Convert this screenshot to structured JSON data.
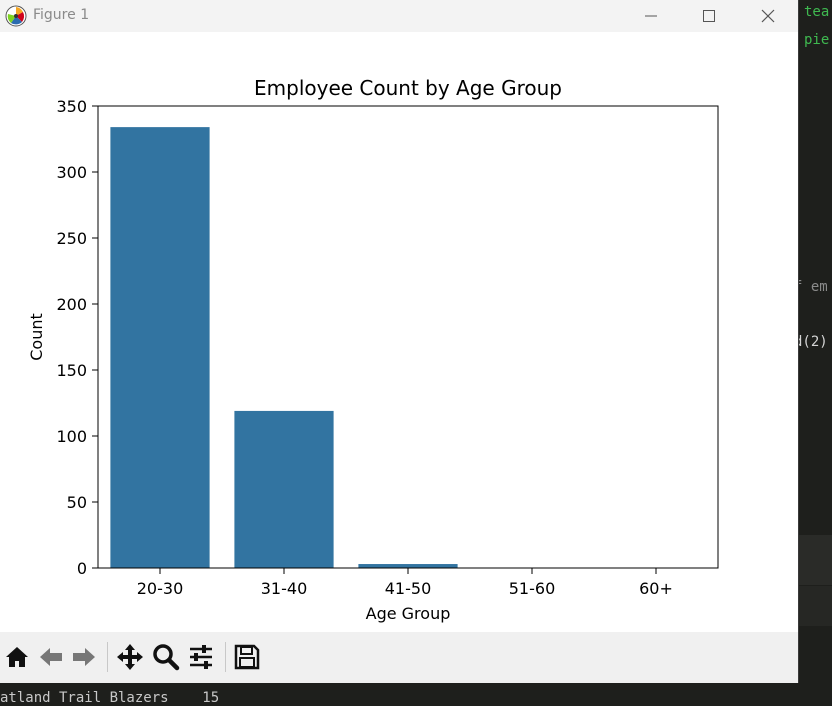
{
  "window": {
    "title": "Figure 1"
  },
  "editor": {
    "lines": [
      "tea",
      "pie",
      "f em",
      "d(2)",
      "atland Trail Blazers    15"
    ]
  },
  "toolbar": {
    "tools": [
      "home-icon",
      "back-arrow-icon",
      "forward-arrow-icon",
      "pan-move-icon",
      "zoom-magnifier-icon",
      "configure-subplots-icon",
      "save-disk-icon"
    ]
  },
  "colors": {
    "bar": "#3274a1",
    "toolbar_bg": "#f0f0f0",
    "titlebar_bg": "#f3f3f3"
  },
  "chart_data": {
    "type": "bar",
    "title": "Employee Count by Age Group",
    "xlabel": "Age Group",
    "ylabel": "Count",
    "categories": [
      "20-30",
      "31-40",
      "41-50",
      "51-60",
      "60+"
    ],
    "values": [
      334,
      119,
      3,
      0,
      0
    ],
    "ylim": [
      0,
      350
    ],
    "yticks": [
      0,
      50,
      100,
      150,
      200,
      250,
      300,
      350
    ],
    "grid": false,
    "legend": "none"
  }
}
